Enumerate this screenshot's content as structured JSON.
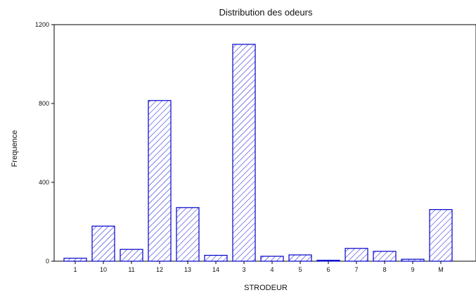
{
  "chart_data": {
    "type": "bar",
    "title": "Distribution des odeurs",
    "xlabel": "STRODEUR",
    "ylabel": "Frequence",
    "categories": [
      "1",
      "10",
      "11",
      "12",
      "13",
      "14",
      "3",
      "4",
      "5",
      "6",
      "7",
      "8",
      "9",
      "M"
    ],
    "values": [
      15,
      178,
      60,
      815,
      272,
      30,
      1100,
      25,
      32,
      5,
      65,
      50,
      10,
      262
    ],
    "ylim": [
      0,
      1200
    ],
    "yticks": [
      0,
      400,
      800,
      1200
    ],
    "grid": false,
    "legend": "none",
    "colors": {
      "bar_stroke": "#0000cc",
      "hatch": "#3333dd",
      "axis": "#000000",
      "text": "#111111",
      "background": "#ffffff"
    }
  }
}
